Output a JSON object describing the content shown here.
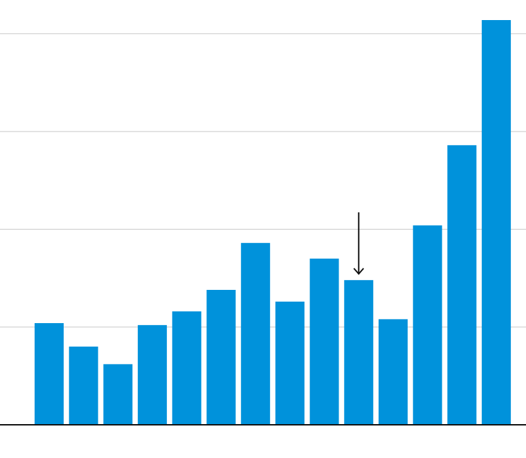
{
  "chart_data": {
    "type": "bar",
    "categories": [
      "",
      "",
      "",
      "",
      "",
      "",
      "",
      "",
      "",
      "",
      "",
      "",
      "",
      ""
    ],
    "values": [
      1.04,
      0.8,
      0.62,
      1.02,
      1.16,
      1.38,
      1.86,
      1.26,
      1.7,
      1.48,
      1.08,
      2.04,
      2.86,
      4.14
    ],
    "title": "",
    "xlabel": "",
    "ylabel": "",
    "ylim": [
      0,
      4.14
    ],
    "gridlines": [
      1,
      2,
      3,
      4
    ],
    "grid": true,
    "legend": "none",
    "annotation": {
      "type": "arrow",
      "target_index": 9
    },
    "colors": {
      "bar": "#0092DB",
      "grid": "#c8c8c8",
      "axis": "#111111",
      "arrow": "#111111"
    }
  }
}
